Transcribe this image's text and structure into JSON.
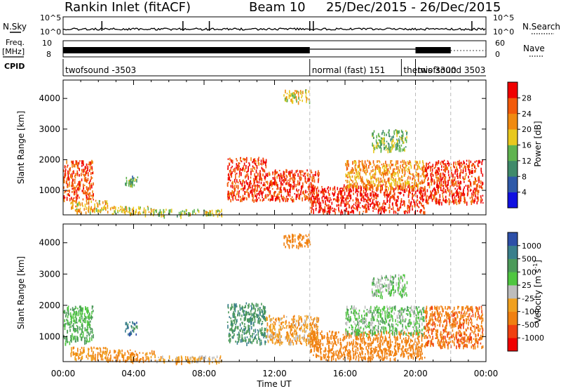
{
  "header": {
    "station_title": "Rankin Inlet (fitACF)",
    "beam_label": "Beam 10",
    "date_range": "25/Dec/2015 - 26/Dec/2015"
  },
  "top_panels": {
    "nsky_label": "N.Sky",
    "nsky_ticks": [
      "10^5",
      "10^0"
    ],
    "nsearch_label": "N.Search",
    "nsearch_ticks": [
      "10^5",
      "10^0"
    ],
    "freq_label": "Freq.",
    "freq_unit": "[MHz]",
    "freq_ticks": [
      "10",
      "8"
    ],
    "nave_label": "Nave",
    "nave_ticks": [
      "60",
      "0"
    ],
    "cpid_label": "CPID",
    "cpid_segments": [
      {
        "label": "twofsound -3503",
        "start_hour": 0,
        "end_hour": 14
      },
      {
        "label": "normal (fast) 151",
        "start_hour": 14,
        "end_hour": 19.2
      },
      {
        "label": "themis 3300",
        "start_hour": 19.2,
        "end_hour": 20
      },
      {
        "label": "twofsound 3503",
        "start_hour": 20,
        "end_hour": 22
      }
    ]
  },
  "chart_data": [
    {
      "type": "heatmap",
      "quantity": "Power",
      "ylabel": "Slant Range [km]",
      "ylim": [
        200,
        4600
      ],
      "y_ticks": [
        "1000",
        "2000",
        "3000",
        "4000"
      ],
      "xlabel": "Time UT",
      "x_ticks": [
        "00:00",
        "04:00",
        "08:00",
        "12:00",
        "16:00",
        "20:00",
        "00:00"
      ],
      "x_range_hours": [
        0,
        24
      ],
      "colorbar": {
        "label": "Power [dB]",
        "ticks": [
          "4",
          "8",
          "12",
          "16",
          "20",
          "24",
          "28"
        ],
        "range": [
          0,
          32
        ],
        "colors": [
          "#1010e0",
          "#2e59a8",
          "#3f8a6a",
          "#5fb34f",
          "#e8c81e",
          "#f08a10",
          "#f25a0a",
          "#f00000"
        ]
      },
      "echo_regions": [
        {
          "t0": 0,
          "t1": 1.7,
          "r0": 700,
          "r1": 2000,
          "value": 26
        },
        {
          "t0": 0.4,
          "t1": 2.5,
          "r0": 300,
          "r1": 700,
          "value": 20
        },
        {
          "t0": 2.5,
          "t1": 5.2,
          "r0": 250,
          "r1": 500,
          "value": 18
        },
        {
          "t0": 3.5,
          "t1": 4.2,
          "r0": 1100,
          "r1": 1500,
          "value": 12
        },
        {
          "t0": 5.2,
          "t1": 9.0,
          "r0": 200,
          "r1": 400,
          "value": 16
        },
        {
          "t0": 9.3,
          "t1": 11.5,
          "r0": 700,
          "r1": 2100,
          "value": 28
        },
        {
          "t0": 11.5,
          "t1": 14.5,
          "r0": 700,
          "r1": 1700,
          "value": 28
        },
        {
          "t0": 14.0,
          "t1": 20.5,
          "r0": 300,
          "r1": 1200,
          "value": 29
        },
        {
          "t0": 16.0,
          "t1": 20.5,
          "r0": 1100,
          "r1": 2000,
          "value": 22
        },
        {
          "t0": 20.5,
          "t1": 23.8,
          "r0": 600,
          "r1": 2000,
          "value": 28
        },
        {
          "t0": 12.5,
          "t1": 14.0,
          "r0": 3900,
          "r1": 4300,
          "value": 18
        },
        {
          "t0": 17.5,
          "t1": 19.5,
          "r0": 2300,
          "r1": 3000,
          "value": 14
        }
      ]
    },
    {
      "type": "heatmap",
      "quantity": "Velocity",
      "ylabel": "Slant Range [km]",
      "ylim": [
        200,
        4600
      ],
      "y_ticks": [
        "1000",
        "2000",
        "3000",
        "4000"
      ],
      "xlabel": "Time UT",
      "x_ticks": [
        "00:00",
        "04:00",
        "08:00",
        "12:00",
        "16:00",
        "20:00",
        "00:00"
      ],
      "x_range_hours": [
        0,
        24
      ],
      "colorbar": {
        "label": "Velocity [m s^-1]",
        "ticks": [
          "1000",
          "500",
          "100",
          "25",
          "-25",
          "-100",
          "-500",
          "-1000"
        ],
        "colors": [
          "#2d4fa8",
          "#3a7f8c",
          "#4c9a5a",
          "#4fc640",
          "#bdbdbd",
          "#f0a020",
          "#f08010",
          "#f04010",
          "#f00000"
        ]
      },
      "echo_regions": [
        {
          "t0": 0,
          "t1": 1.7,
          "r0": 800,
          "r1": 2000,
          "value": 100
        },
        {
          "t0": 0.4,
          "t1": 2.5,
          "r0": 300,
          "r1": 700,
          "value": -100
        },
        {
          "t0": 2.5,
          "t1": 5.2,
          "r0": 250,
          "r1": 600,
          "value": -150
        },
        {
          "t0": 3.5,
          "t1": 4.2,
          "r0": 1100,
          "r1": 1500,
          "value": 700
        },
        {
          "t0": 5.2,
          "t1": 9.0,
          "r0": 200,
          "r1": 400,
          "value": -50
        },
        {
          "t0": 9.3,
          "t1": 11.5,
          "r0": 800,
          "r1": 2100,
          "value": 400
        },
        {
          "t0": 11.5,
          "t1": 14.5,
          "r0": 800,
          "r1": 1700,
          "value": -80
        },
        {
          "t0": 14.0,
          "t1": 20.5,
          "r0": 300,
          "r1": 1200,
          "value": -300
        },
        {
          "t0": 16.0,
          "t1": 20.5,
          "r0": 1100,
          "r1": 2000,
          "value": 60
        },
        {
          "t0": 20.5,
          "t1": 23.8,
          "r0": 700,
          "r1": 2000,
          "value": -400
        },
        {
          "t0": 12.5,
          "t1": 14.0,
          "r0": 3900,
          "r1": 4300,
          "value": -200
        },
        {
          "t0": 17.5,
          "t1": 19.5,
          "r0": 2300,
          "r1": 3000,
          "value": 50
        }
      ]
    }
  ]
}
